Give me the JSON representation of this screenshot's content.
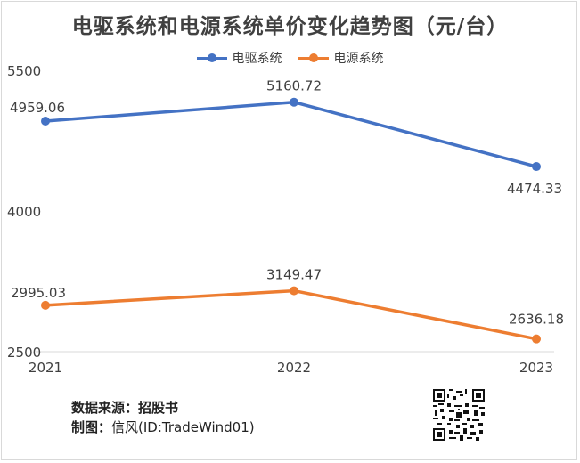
{
  "chart_data": {
    "type": "line",
    "title": "电驱系统和电源系统单价变化趋势图（元/台）",
    "categories": [
      "2021",
      "2022",
      "2023"
    ],
    "series": [
      {
        "name": "电驱系统",
        "values": [
          4959.06,
          5160.72,
          4474.33
        ],
        "color": "#4472c4"
      },
      {
        "name": "电源系统",
        "values": [
          2995.03,
          3149.47,
          2636.18
        ],
        "color": "#ed7d31"
      }
    ],
    "data_labels": [
      [
        "4959.06",
        "5160.72",
        "4474.33"
      ],
      [
        "2995.03",
        "3149.47",
        "2636.18"
      ]
    ],
    "yticks": [
      "5500",
      "4000",
      "2500"
    ],
    "ylim": [
      2500,
      5500
    ],
    "grid": false,
    "legend_position": "top"
  },
  "footer": {
    "source_label": "数据来源：",
    "source_value": "招股书",
    "author_label": "制图：",
    "author_value": "信风(ID:TradeWind01)"
  },
  "qr_icon": "qr-code-icon"
}
